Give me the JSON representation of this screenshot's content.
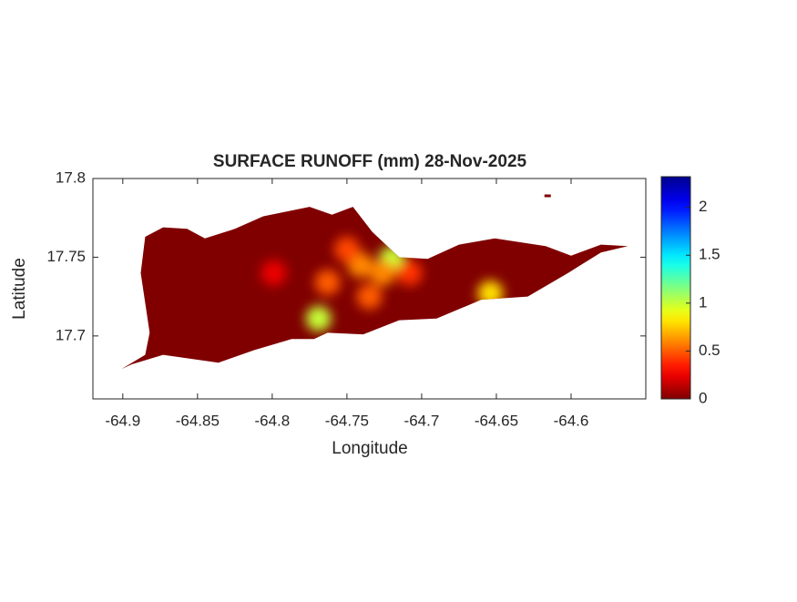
{
  "chart_data": {
    "type": "raster-map",
    "title": "SURFACE RUNOFF (mm) 28-Nov-2025",
    "xlabel": "Longitude",
    "ylabel": "Latitude",
    "xlim": [
      -64.92,
      -64.55
    ],
    "ylim": [
      17.66,
      17.8
    ],
    "xticks": [
      -64.9,
      -64.85,
      -64.8,
      -64.75,
      -64.7,
      -64.65,
      -64.6
    ],
    "yticks": [
      17.7,
      17.75,
      17.8
    ],
    "colormap": "jet",
    "colormap_reversed": true,
    "clim": [
      0,
      2.32
    ],
    "cticks": [
      0,
      0.5,
      1,
      1.5,
      2
    ],
    "land": {
      "lon": [
        -64.901,
        -64.885,
        -64.882,
        -64.888,
        -64.885,
        -64.873,
        -64.857,
        -64.845,
        -64.825,
        -64.806,
        -64.775,
        -64.76,
        -64.746,
        -64.733,
        -64.715,
        -64.696,
        -64.675,
        -64.651,
        -64.617,
        -64.6,
        -64.58,
        -64.562,
        -64.58,
        -64.602,
        -64.629,
        -64.66,
        -64.69,
        -64.715,
        -64.739,
        -64.763,
        -64.772,
        -64.787,
        -64.812,
        -64.836,
        -64.873,
        -64.894
      ],
      "lat": [
        17.679,
        17.688,
        17.702,
        17.74,
        17.763,
        17.769,
        17.768,
        17.762,
        17.768,
        17.776,
        17.782,
        17.777,
        17.782,
        17.766,
        17.75,
        17.749,
        17.758,
        17.762,
        17.757,
        17.751,
        17.758,
        17.757,
        17.753,
        17.74,
        17.725,
        17.723,
        17.711,
        17.71,
        17.701,
        17.702,
        17.698,
        17.698,
        17.691,
        17.683,
        17.688,
        17.682
      ]
    },
    "islet": {
      "lon": -64.616,
      "lat": 17.789
    },
    "hotspots": {
      "lon": [
        -64.72,
        -64.654,
        -64.769,
        -64.741,
        -64.763,
        -64.726,
        -64.799,
        -64.708,
        -64.75,
        -64.735
      ],
      "lat": [
        17.749,
        17.727,
        17.711,
        17.745,
        17.734,
        17.74,
        17.74,
        17.74,
        17.755,
        17.725
      ],
      "value": [
        1.0,
        0.8,
        1.0,
        0.6,
        0.5,
        0.6,
        0.25,
        0.4,
        0.45,
        0.5
      ]
    }
  }
}
